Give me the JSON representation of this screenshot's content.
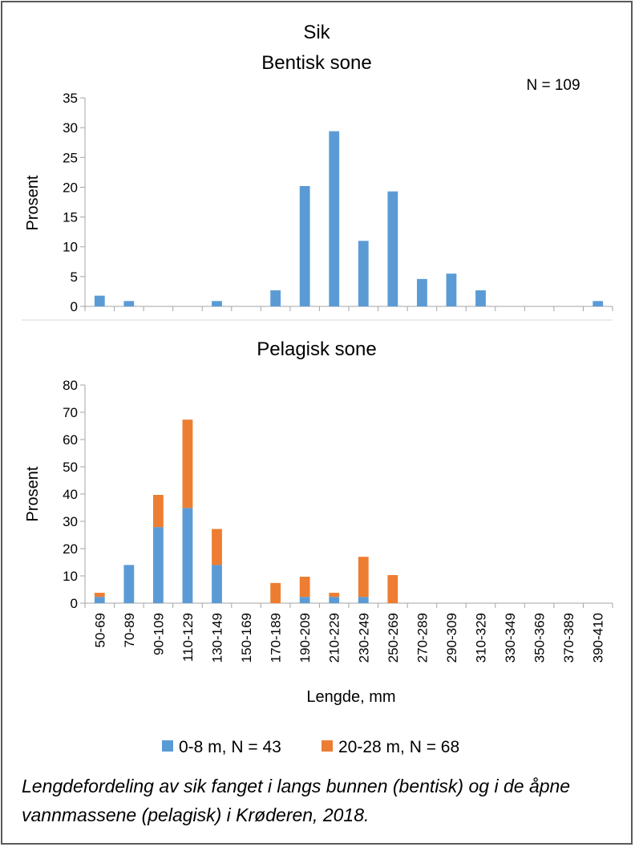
{
  "colors": {
    "series_0_8": "#5b9bd5",
    "series_20_28": "#ed7d31",
    "axis": "#a6a6a6"
  },
  "chart_data": [
    {
      "type": "bar",
      "title": "Sik",
      "subtitle": "Bentisk sone",
      "annotation": "N = 109",
      "xlabel": "",
      "ylabel": "Prosent",
      "ylim": [
        0,
        35
      ],
      "yticks": [
        0,
        5,
        10,
        15,
        20,
        25,
        30,
        35
      ],
      "grid": false,
      "categories": [
        "50-69",
        "70-89",
        "90-109",
        "110-129",
        "130-149",
        "150-169",
        "170-189",
        "190-209",
        "210-229",
        "230-249",
        "250-269",
        "270-289",
        "290-309",
        "310-329",
        "330-349",
        "350-369",
        "370-389",
        "390-410"
      ],
      "series": [
        {
          "values": [
            1.8,
            0.9,
            0,
            0,
            0.9,
            0,
            2.7,
            20.2,
            29.4,
            11.0,
            19.3,
            4.6,
            5.5,
            2.7,
            0,
            0,
            0,
            0.9
          ]
        }
      ]
    },
    {
      "type": "bar",
      "stacked": true,
      "title": "Pelagisk sone",
      "xlabel": "Lengde, mm",
      "ylabel": "Prosent",
      "ylim": [
        0,
        80
      ],
      "yticks": [
        0,
        10,
        20,
        30,
        40,
        50,
        60,
        70,
        80
      ],
      "grid": false,
      "legend_position": "bottom",
      "categories": [
        "50-69",
        "70-89",
        "90-109",
        "110-129",
        "130-149",
        "150-169",
        "170-189",
        "190-209",
        "210-229",
        "230-249",
        "250-269",
        "270-289",
        "290-309",
        "310-329",
        "330-349",
        "350-369",
        "370-389",
        "390-410"
      ],
      "series": [
        {
          "name": "0-8 m, N = 43",
          "values": [
            2.3,
            14.0,
            27.9,
            34.9,
            14.0,
            0,
            0,
            2.3,
            2.3,
            2.3,
            0,
            0,
            0,
            0,
            0,
            0,
            0,
            0
          ]
        },
        {
          "name": "20-28 m, N = 68",
          "values": [
            1.5,
            0,
            11.8,
            32.4,
            13.2,
            0,
            7.4,
            7.4,
            1.5,
            14.7,
            10.3,
            0,
            0,
            0,
            0,
            0,
            0,
            0
          ]
        }
      ]
    }
  ],
  "caption": "Lengdefordeling av sik fanget i langs bunnen (bentisk) og i de åpne vannmassene (pelagisk) i Krøderen, 2018."
}
